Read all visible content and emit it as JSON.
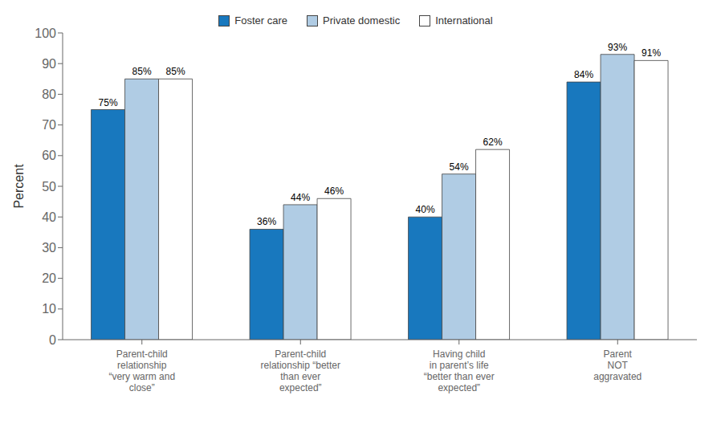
{
  "chart_data": {
    "type": "bar",
    "categories": [
      "Parent-child\nrelationship\n“very warm and\nclose”",
      "Parent-child\nrelationship “better\nthan ever\nexpected”",
      "Having child\nin parent’s life\n“better than ever\nexpected”",
      "Parent\nNOT\naggravated"
    ],
    "series": [
      {
        "name": "Foster care",
        "color": "#1878be",
        "values": [
          75,
          36,
          40,
          84
        ],
        "value_labels": [
          "75%",
          "36%",
          "40%",
          "84%"
        ]
      },
      {
        "name": "Private domestic",
        "color": "#b0cce4",
        "values": [
          85,
          44,
          54,
          93
        ],
        "value_labels": [
          "85%",
          "44%",
          "54%",
          "93%"
        ]
      },
      {
        "name": "International",
        "color": "#ffffff",
        "values": [
          85,
          46,
          62,
          91
        ],
        "value_labels": [
          "85%",
          "46%",
          "62%",
          "91%"
        ]
      }
    ],
    "ylabel": "Percent",
    "ylim": [
      0,
      100
    ],
    "yticks": [
      0,
      10,
      20,
      30,
      40,
      50,
      60,
      70,
      80,
      90,
      100
    ],
    "grid": false,
    "legend": "top",
    "data_labels": true
  }
}
